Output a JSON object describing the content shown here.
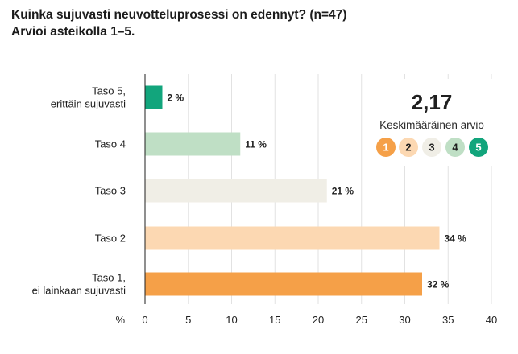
{
  "title_line1": "Kuinka sujuvasti neuvotteluprosessi on edennyt? (n=47)",
  "title_line2": "Arvioi asteikolla 1–5.",
  "chart_data": {
    "type": "bar",
    "orientation": "horizontal",
    "categories": [
      [
        "Taso 5,",
        "erittäin sujuvasti"
      ],
      [
        "Taso 4"
      ],
      [
        "Taso 3"
      ],
      [
        "Taso 2"
      ],
      [
        "Taso 1,",
        "ei lainkaan sujuvasti"
      ]
    ],
    "values": [
      2,
      11,
      21,
      34,
      32
    ],
    "value_labels": [
      "2 %",
      "11 %",
      "21 %",
      "34 %",
      "32 %"
    ],
    "colors": [
      "#12a57c",
      "#bfdfc5",
      "#f0eee6",
      "#fcd8b2",
      "#f5a048"
    ],
    "xlabel": "%",
    "xlim": [
      0,
      40
    ],
    "xticks": [
      0,
      5,
      10,
      15,
      20,
      25,
      30,
      35,
      40
    ],
    "grid": "vertical",
    "average": {
      "value": "2,17",
      "caption": "Keskimääräinen arvio",
      "scale": [
        {
          "label": "1",
          "fill": "#f5a048",
          "text": "#ffffff"
        },
        {
          "label": "2",
          "fill": "#fcd8b2",
          "text": "#1f1f1f"
        },
        {
          "label": "3",
          "fill": "#f0eee6",
          "text": "#1f1f1f"
        },
        {
          "label": "4",
          "fill": "#bfdfc5",
          "text": "#1f1f1f"
        },
        {
          "label": "5",
          "fill": "#12a57c",
          "text": "#ffffff"
        }
      ]
    }
  }
}
